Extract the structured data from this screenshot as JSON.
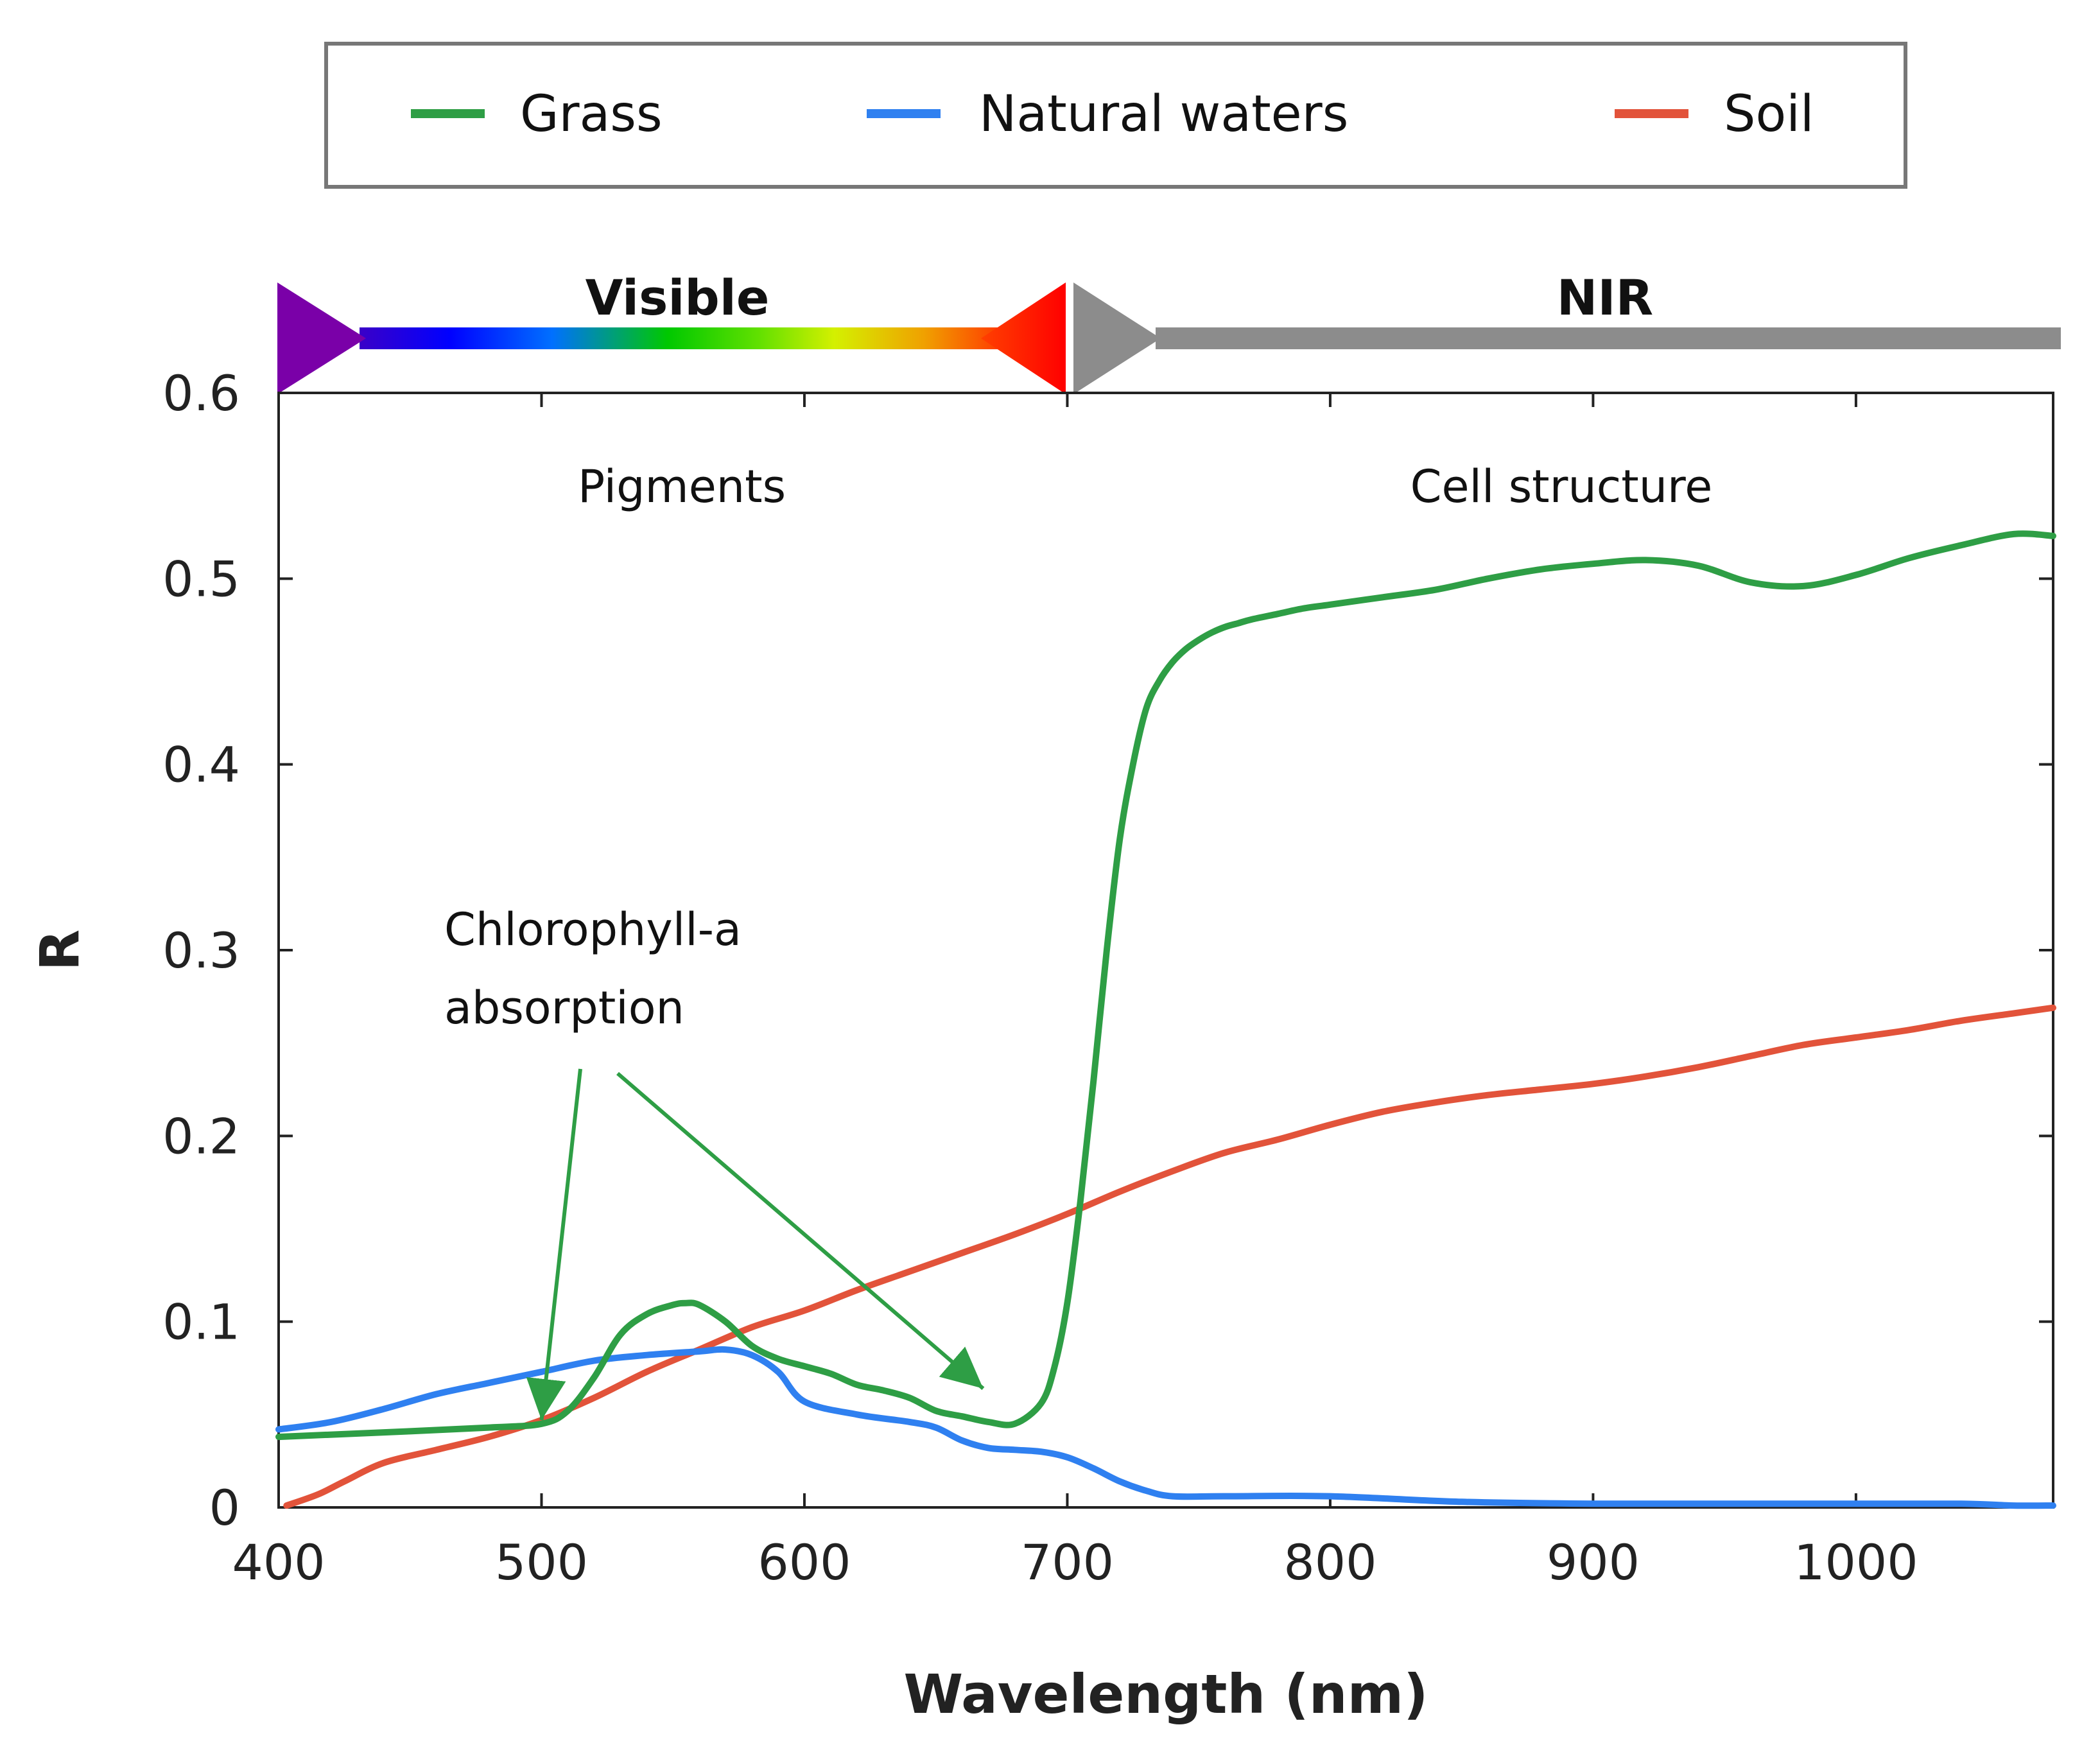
{
  "chart_data": {
    "type": "line",
    "xlabel": "Wavelength (nm)",
    "ylabel": "R",
    "xlim": [
      400,
      1075
    ],
    "ylim": [
      0,
      0.6
    ],
    "xticks": [
      400,
      500,
      600,
      700,
      800,
      900,
      1000
    ],
    "xtick_labels": [
      "400",
      "500",
      "600",
      "700",
      "800",
      "900",
      "1000"
    ],
    "yticks": [
      0,
      0.1,
      0.2,
      0.3,
      0.4,
      0.5,
      0.6
    ],
    "ytick_labels": [
      "0",
      "0.1",
      "0.2",
      "0.3",
      "0.4",
      "0.5",
      "0.6"
    ],
    "grid": false,
    "legend_position": "top",
    "series": [
      {
        "name": "Grass",
        "color": "#2e9e45",
        "x": [
          400,
          450,
          480,
          500,
          510,
          520,
          530,
          540,
          550,
          555,
          560,
          570,
          580,
          590,
          600,
          610,
          620,
          630,
          640,
          650,
          660,
          670,
          680,
          690,
          695,
          700,
          705,
          710,
          715,
          720,
          725,
          730,
          735,
          740,
          745,
          750,
          755,
          760,
          765,
          770,
          780,
          790,
          800,
          820,
          840,
          860,
          880,
          900,
          920,
          940,
          960,
          980,
          1000,
          1020,
          1040,
          1060,
          1075
        ],
        "y": [
          0.038,
          0.041,
          0.043,
          0.045,
          0.052,
          0.07,
          0.093,
          0.104,
          0.109,
          0.11,
          0.109,
          0.1,
          0.087,
          0.08,
          0.076,
          0.072,
          0.066,
          0.063,
          0.059,
          0.052,
          0.049,
          0.046,
          0.045,
          0.056,
          0.075,
          0.11,
          0.165,
          0.23,
          0.3,
          0.36,
          0.4,
          0.43,
          0.445,
          0.455,
          0.462,
          0.467,
          0.471,
          0.474,
          0.476,
          0.478,
          0.481,
          0.484,
          0.486,
          0.49,
          0.494,
          0.5,
          0.505,
          0.508,
          0.51,
          0.507,
          0.498,
          0.496,
          0.502,
          0.511,
          0.518,
          0.524,
          0.523
        ]
      },
      {
        "name": "Natural waters",
        "color": "#2f80f0",
        "x": [
          400,
          420,
          440,
          460,
          480,
          500,
          520,
          540,
          560,
          570,
          580,
          590,
          600,
          620,
          640,
          650,
          660,
          670,
          680,
          690,
          700,
          710,
          720,
          730,
          740,
          760,
          800,
          850,
          900,
          950,
          1000,
          1040,
          1060,
          1075
        ],
        "y": [
          0.042,
          0.046,
          0.053,
          0.061,
          0.067,
          0.073,
          0.079,
          0.082,
          0.084,
          0.085,
          0.082,
          0.073,
          0.057,
          0.05,
          0.046,
          0.043,
          0.036,
          0.032,
          0.031,
          0.03,
          0.027,
          0.021,
          0.014,
          0.009,
          0.006,
          0.006,
          0.006,
          0.003,
          0.002,
          0.002,
          0.002,
          0.002,
          0.001,
          0.001
        ]
      },
      {
        "name": "Soil",
        "color": "#e2533a",
        "x": [
          403,
          415,
          425,
          440,
          460,
          480,
          500,
          520,
          540,
          560,
          580,
          600,
          620,
          640,
          660,
          680,
          700,
          720,
          740,
          760,
          780,
          800,
          820,
          840,
          860,
          880,
          900,
          920,
          940,
          960,
          980,
          1000,
          1020,
          1040,
          1060,
          1075
        ],
        "y": [
          0.001,
          0.007,
          0.014,
          0.024,
          0.031,
          0.038,
          0.047,
          0.059,
          0.073,
          0.085,
          0.097,
          0.106,
          0.117,
          0.127,
          0.137,
          0.147,
          0.158,
          0.17,
          0.181,
          0.191,
          0.198,
          0.206,
          0.213,
          0.218,
          0.222,
          0.225,
          0.228,
          0.232,
          0.237,
          0.243,
          0.249,
          0.253,
          0.257,
          0.262,
          0.266,
          0.269
        ]
      }
    ],
    "regions": [
      {
        "label": "Visible",
        "annotation": "Pigments"
      },
      {
        "label": "NIR",
        "annotation": "Cell structure"
      }
    ],
    "annotations": [
      {
        "text_lines": [
          "Chlorophyll-a",
          "absorption"
        ],
        "arrow_targets": [
          [
            500,
            0.047
          ],
          [
            668,
            0.064
          ]
        ]
      }
    ]
  }
}
